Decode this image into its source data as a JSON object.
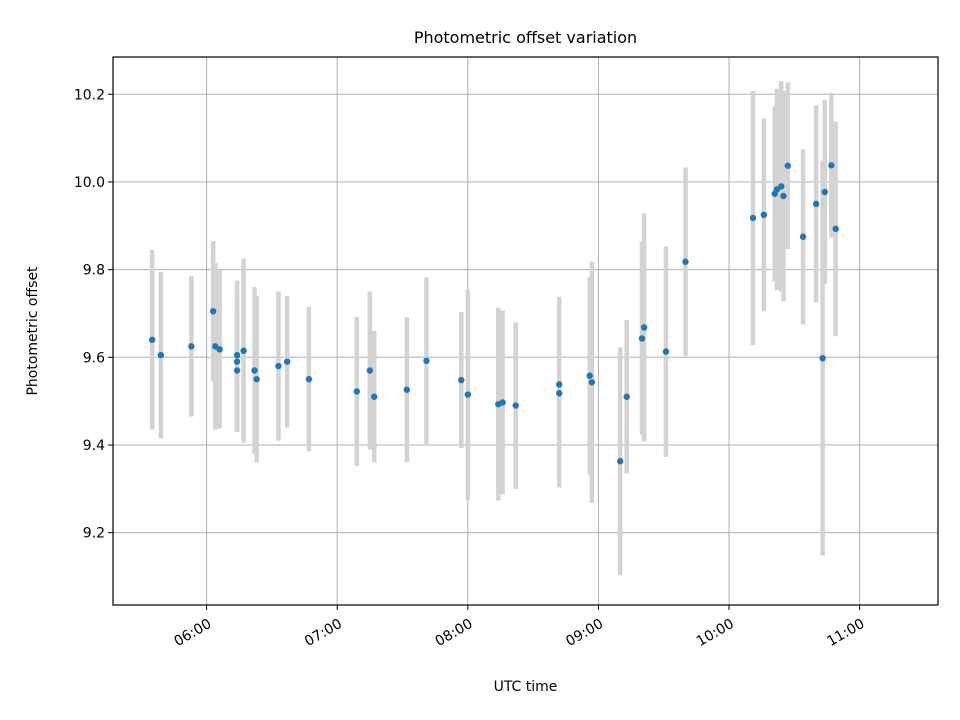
{
  "chart_data": {
    "type": "scatter",
    "title": "Photometric offset variation",
    "xlabel": "UTC time",
    "ylabel": "Photometric offset",
    "x_unit": "hours",
    "xlim": [
      "05:17",
      "11:36"
    ],
    "ylim": [
      9.035,
      10.285
    ],
    "x_ticks": [
      "06:00",
      "07:00",
      "08:00",
      "09:00",
      "10:00",
      "11:00"
    ],
    "y_ticks": [
      "9.2",
      "9.4",
      "9.6",
      "9.8",
      "10.0",
      "10.2"
    ],
    "grid": true,
    "colors": {
      "point": "#1f77b4",
      "errorbar": "#d3d3d3",
      "grid": "#b0b0b0",
      "axes": "#000000"
    },
    "series": [
      {
        "x": [
          "05:35",
          "05:39",
          "05:53",
          "06:03",
          "06:04",
          "06:06",
          "06:14",
          "06:14",
          "06:14",
          "06:17",
          "06:22",
          "06:23",
          "06:33",
          "06:37",
          "06:47",
          "07:09",
          "07:15",
          "07:17",
          "07:32",
          "07:41",
          "07:57",
          "08:00",
          "08:14",
          "08:16",
          "08:22",
          "08:42",
          "08:42",
          "08:56",
          "08:57",
          "09:10",
          "09:13",
          "09:20",
          "09:21",
          "09:31",
          "09:40",
          "10:11",
          "10:16",
          "10:21",
          "10:22",
          "10:24",
          "10:25",
          "10:27",
          "10:34",
          "10:40",
          "10:43",
          "10:44",
          "10:47",
          "10:49"
        ],
        "y": [
          9.64,
          9.605,
          9.625,
          9.705,
          9.625,
          9.618,
          9.605,
          9.59,
          9.57,
          9.615,
          9.57,
          9.55,
          9.58,
          9.59,
          9.55,
          9.522,
          9.57,
          9.51,
          9.526,
          9.592,
          9.548,
          9.515,
          9.493,
          9.497,
          9.49,
          9.538,
          9.518,
          9.558,
          9.543,
          9.363,
          9.51,
          9.643,
          9.668,
          9.613,
          9.818,
          9.918,
          9.925,
          9.973,
          9.983,
          9.99,
          9.968,
          10.037,
          9.875,
          9.95,
          9.598,
          9.977,
          10.038,
          9.893
        ],
        "err": [
          0.205,
          0.19,
          0.16,
          0.16,
          0.19,
          0.18,
          0.17,
          0.16,
          0.14,
          0.21,
          0.19,
          0.19,
          0.17,
          0.15,
          0.165,
          0.17,
          0.18,
          0.15,
          0.165,
          0.19,
          0.155,
          0.24,
          0.22,
          0.21,
          0.19,
          0.2,
          0.215,
          0.225,
          0.275,
          0.26,
          0.175,
          0.22,
          0.26,
          0.24,
          0.215,
          0.29,
          0.22,
          0.2,
          0.23,
          0.24,
          0.24,
          0.19,
          0.2,
          0.225,
          0.45,
          0.21,
          0.165,
          0.245
        ]
      }
    ]
  }
}
